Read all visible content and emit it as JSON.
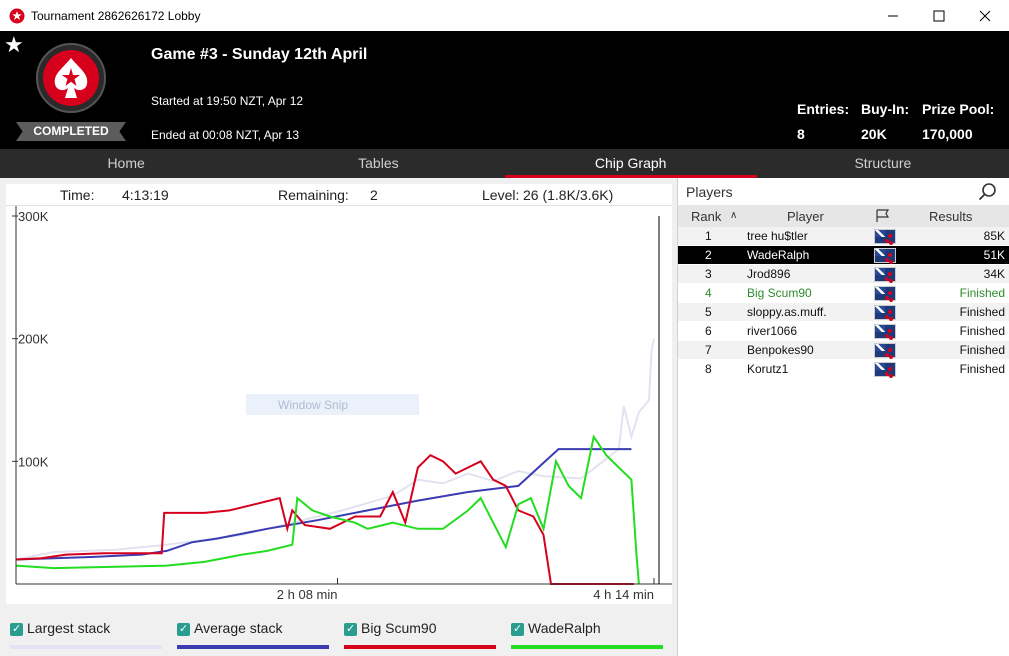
{
  "window": {
    "title": "Tournament 2862626172 Lobby"
  },
  "header": {
    "status_badge": "COMPLETED",
    "game_title": "Game #3 - Sunday 12th April",
    "started": "Started at 19:50 NZT, Apr 12",
    "ended": "Ended at 00:08 NZT, Apr 13",
    "stats": [
      {
        "label": "Entries:",
        "value": "8"
      },
      {
        "label": "Buy-In:",
        "value": "20K"
      },
      {
        "label": "Prize Pool:",
        "value": "170,000"
      }
    ]
  },
  "tabs": [
    {
      "label": "Home",
      "active": false
    },
    {
      "label": "Tables",
      "active": false
    },
    {
      "label": "Chip Graph",
      "active": true
    },
    {
      "label": "Structure",
      "active": false
    }
  ],
  "info": {
    "time_label": "Time:",
    "time_value": "4:13:19",
    "remaining_label": "Remaining:",
    "remaining_value": "2",
    "level_label": "Level:",
    "level_value": "26 (1.8K/3.6K)"
  },
  "overlay_text": "Window Snip",
  "chart_data": {
    "type": "line",
    "x_ticks": [
      "2 h 08 min",
      "4 h 14 min"
    ],
    "y_ticks": [
      "300K",
      "200K",
      "100K"
    ],
    "ylim": [
      0,
      300000
    ],
    "xlim_minutes": [
      0,
      256
    ],
    "series": [
      {
        "name": "Largest stack",
        "color": "#e2e2f0",
        "points": [
          [
            0,
            20000
          ],
          [
            15,
            26000
          ],
          [
            40,
            28000
          ],
          [
            60,
            32000
          ],
          [
            90,
            40000
          ],
          [
            110,
            50000
          ],
          [
            130,
            60000
          ],
          [
            150,
            72000
          ],
          [
            160,
            85000
          ],
          [
            170,
            82000
          ],
          [
            180,
            90000
          ],
          [
            190,
            84000
          ],
          [
            200,
            92000
          ],
          [
            210,
            88000
          ],
          [
            225,
            86000
          ],
          [
            240,
            110000
          ],
          [
            242,
            145000
          ],
          [
            245,
            120000
          ],
          [
            248,
            140000
          ],
          [
            250,
            145000
          ],
          [
            252,
            150000
          ],
          [
            253,
            190000
          ],
          [
            254,
            200000
          ]
        ]
      },
      {
        "name": "Average stack",
        "color": "#3b3bb3",
        "points": [
          [
            0,
            20000
          ],
          [
            30,
            22000
          ],
          [
            50,
            24000
          ],
          [
            60,
            27000
          ],
          [
            70,
            34000
          ],
          [
            80,
            37000
          ],
          [
            100,
            45000
          ],
          [
            120,
            52000
          ],
          [
            140,
            60000
          ],
          [
            160,
            68000
          ],
          [
            180,
            75000
          ],
          [
            200,
            80000
          ],
          [
            216,
            110000
          ],
          [
            245,
            110000
          ]
        ]
      },
      {
        "name": "Big Scum90",
        "color": "#d6001c",
        "points": [
          [
            0,
            20000
          ],
          [
            10,
            21000
          ],
          [
            20,
            24000
          ],
          [
            35,
            25000
          ],
          [
            58,
            25000
          ],
          [
            59,
            58000
          ],
          [
            75,
            58000
          ],
          [
            85,
            60000
          ],
          [
            95,
            65000
          ],
          [
            105,
            70000
          ],
          [
            108,
            45000
          ],
          [
            110,
            60000
          ],
          [
            115,
            48000
          ],
          [
            125,
            45000
          ],
          [
            135,
            55000
          ],
          [
            145,
            55000
          ],
          [
            150,
            75000
          ],
          [
            155,
            50000
          ],
          [
            160,
            95000
          ],
          [
            165,
            105000
          ],
          [
            170,
            100000
          ],
          [
            175,
            90000
          ],
          [
            180,
            95000
          ],
          [
            185,
            100000
          ],
          [
            190,
            85000
          ],
          [
            195,
            80000
          ],
          [
            200,
            60000
          ],
          [
            206,
            55000
          ],
          [
            210,
            40000
          ],
          [
            213,
            0
          ],
          [
            246,
            0
          ]
        ]
      },
      {
        "name": "WadeRalph",
        "color": "#22dd22",
        "points": [
          [
            0,
            15000
          ],
          [
            15,
            13000
          ],
          [
            40,
            14000
          ],
          [
            60,
            15000
          ],
          [
            75,
            18000
          ],
          [
            90,
            24000
          ],
          [
            100,
            27000
          ],
          [
            110,
            32000
          ],
          [
            112,
            70000
          ],
          [
            118,
            60000
          ],
          [
            125,
            55000
          ],
          [
            135,
            50000
          ],
          [
            140,
            45000
          ],
          [
            150,
            50000
          ],
          [
            160,
            45000
          ],
          [
            170,
            45000
          ],
          [
            180,
            60000
          ],
          [
            185,
            70000
          ],
          [
            190,
            50000
          ],
          [
            195,
            30000
          ],
          [
            200,
            65000
          ],
          [
            205,
            70000
          ],
          [
            210,
            45000
          ],
          [
            215,
            100000
          ],
          [
            220,
            80000
          ],
          [
            225,
            70000
          ],
          [
            230,
            120000
          ],
          [
            235,
            105000
          ],
          [
            240,
            95000
          ],
          [
            245,
            85000
          ],
          [
            247,
            25000
          ],
          [
            248,
            0
          ]
        ]
      }
    ]
  },
  "legend": [
    {
      "label": "Largest stack",
      "color": "#e2e2f0"
    },
    {
      "label": "Average stack",
      "color": "#3b3bb3"
    },
    {
      "label": "Big Scum90",
      "color": "#d6001c"
    },
    {
      "label": "WadeRalph",
      "color": "#22dd22"
    }
  ],
  "players_panel": {
    "title": "Players",
    "columns": {
      "rank": "Rank",
      "player": "Player",
      "results": "Results"
    },
    "rows": [
      {
        "rank": "1",
        "player": "tree hu$tler",
        "result": "85K",
        "selected": false,
        "green": false
      },
      {
        "rank": "2",
        "player": "WadeRalph",
        "result": "51K",
        "selected": true,
        "green": false
      },
      {
        "rank": "3",
        "player": "Jrod896",
        "result": "34K",
        "selected": false,
        "green": false
      },
      {
        "rank": "4",
        "player": "Big Scum90",
        "result": "Finished",
        "selected": false,
        "green": true
      },
      {
        "rank": "5",
        "player": "sloppy.as.muff.",
        "result": "Finished",
        "selected": false,
        "green": false
      },
      {
        "rank": "6",
        "player": "river1066",
        "result": "Finished",
        "selected": false,
        "green": false
      },
      {
        "rank": "7",
        "player": "Benpokes90",
        "result": "Finished",
        "selected": false,
        "green": false
      },
      {
        "rank": "8",
        "player": "Korutz1",
        "result": "Finished",
        "selected": false,
        "green": false
      }
    ]
  }
}
